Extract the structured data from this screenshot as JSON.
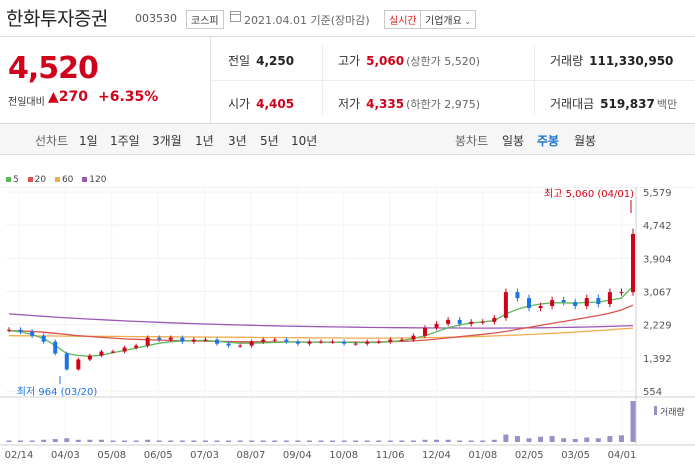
{
  "header": {
    "name": "한화투자증권",
    "code": "003530",
    "market": "코스피",
    "date": "2021.04.01 기준(장마감)",
    "live_label": "실시간",
    "info_label": "기업개요"
  },
  "quote": {
    "price": "4,520",
    "change_label": "전일대비",
    "change": "270",
    "change_pct": "+6.35%",
    "prev_close": {
      "label": "전일",
      "value": "4,250"
    },
    "high": {
      "label": "고가",
      "value": "5,060",
      "sub": "(상한가 5,520)"
    },
    "volume": {
      "label": "거래량",
      "value": "111,330,950"
    },
    "open": {
      "label": "시가",
      "value": "4,405"
    },
    "low": {
      "label": "저가",
      "value": "4,335",
      "sub": "(하한가 2,975)"
    },
    "amount": {
      "label": "거래대금",
      "value": "519,837",
      "unit": "백만"
    }
  },
  "periods": {
    "line_label": "선차트",
    "line": [
      "1일",
      "1주일",
      "3개월",
      "1년",
      "3년",
      "5년",
      "10년"
    ],
    "candle_label": "봉차트",
    "candle": [
      "일봉",
      "주봉",
      "월봉"
    ],
    "active_candle": "주봉"
  },
  "legend": [
    {
      "label": "5",
      "color": "#5cb85c"
    },
    {
      "label": "20",
      "color": "#d9534f"
    },
    {
      "label": "60",
      "color": "#f0ad4e"
    },
    {
      "label": "120",
      "color": "#9b59b6"
    }
  ],
  "colors": {
    "up": "#d0021b",
    "down": "#1a73e8",
    "volume": "#9b8fc9"
  },
  "chart_data": {
    "type": "candlestick",
    "interval": "weekly",
    "y_ticks": [
      "5,579",
      "4,742",
      "3,904",
      "3,067",
      "2,229",
      "1,392",
      "554"
    ],
    "ylim": [
      554,
      5579
    ],
    "x_ticks": [
      "02/14",
      "04/03",
      "05/08",
      "06/05",
      "07/03",
      "08/07",
      "09/04",
      "10/08",
      "11/06",
      "12/04",
      "01/08",
      "02/05",
      "03/05",
      "04/01"
    ],
    "high_note": "최고 5,060 (04/01)",
    "low_note": "최저 964 (03/20)",
    "volume_label": "거래량",
    "closes": [
      2100,
      2050,
      1950,
      1800,
      1500,
      1100,
      1350,
      1450,
      1550,
      1550,
      1650,
      1700,
      1900,
      1850,
      1900,
      1800,
      1850,
      1850,
      1750,
      1700,
      1700,
      1800,
      1850,
      1850,
      1800,
      1750,
      1800,
      1800,
      1800,
      1750,
      1750,
      1800,
      1800,
      1850,
      1850,
      1950,
      2150,
      2250,
      2350,
      2250,
      2300,
      2300,
      2400,
      3050,
      2900,
      2650,
      2700,
      2850,
      2800,
      2700,
      2900,
      2750,
      3050,
      3050,
      4520
    ],
    "ma5": [
      2080,
      2050,
      1980,
      1880,
      1700,
      1500,
      1450,
      1430,
      1460,
      1520,
      1580,
      1640,
      1700,
      1760,
      1800,
      1820,
      1830,
      1830,
      1810,
      1780,
      1760,
      1760,
      1770,
      1780,
      1790,
      1790,
      1790,
      1790,
      1790,
      1780,
      1775,
      1775,
      1780,
      1800,
      1830,
      1880,
      1950,
      2050,
      2150,
      2220,
      2270,
      2300,
      2330,
      2500,
      2620,
      2700,
      2750,
      2780,
      2780,
      2770,
      2790,
      2800,
      2850,
      2900,
      3200
    ],
    "ma20": [
      2080,
      2070,
      2060,
      2040,
      2010,
      1980,
      1950,
      1930,
      1910,
      1890,
      1870,
      1860,
      1850,
      1840,
      1830,
      1825,
      1820,
      1815,
      1810,
      1805,
      1800,
      1798,
      1796,
      1795,
      1794,
      1793,
      1792,
      1791,
      1790,
      1789,
      1788,
      1789,
      1792,
      1798,
      1806,
      1820,
      1840,
      1865,
      1895,
      1925,
      1955,
      1985,
      2015,
      2060,
      2110,
      2160,
      2210,
      2260,
      2310,
      2360,
      2410,
      2460,
      2520,
      2600,
      2720
    ],
    "ma60": [
      1950,
      1948,
      1946,
      1944,
      1942,
      1940,
      1938,
      1936,
      1934,
      1932,
      1930,
      1928,
      1926,
      1924,
      1922,
      1920,
      1918,
      1916,
      1914,
      1912,
      1910,
      1908,
      1906,
      1904,
      1902,
      1900,
      1898,
      1896,
      1894,
      1892,
      1890,
      1890,
      1890,
      1891,
      1893,
      1896,
      1900,
      1905,
      1911,
      1918,
      1926,
      1935,
      1945,
      1956,
      1968,
      1981,
      1995,
      2010,
      2026,
      2043,
      2061,
      2080,
      2100,
      2121,
      2143
    ],
    "ma120": [
      2500,
      2480,
      2460,
      2440,
      2420,
      2400,
      2385,
      2370,
      2355,
      2340,
      2325,
      2312,
      2300,
      2288,
      2276,
      2265,
      2255,
      2245,
      2236,
      2228,
      2220,
      2213,
      2206,
      2200,
      2194,
      2188,
      2183,
      2178,
      2173,
      2169,
      2165,
      2161,
      2158,
      2155,
      2152,
      2150,
      2148,
      2146,
      2145,
      2144,
      2143,
      2143,
      2143,
      2144,
      2146,
      2148,
      2151,
      2155,
      2160,
      2165,
      2171,
      2178,
      2186,
      2195,
      2205
    ],
    "volumes": [
      2,
      2,
      2,
      3,
      4,
      5,
      3,
      3,
      3,
      2,
      2,
      2,
      3,
      2,
      2,
      2,
      2,
      2,
      2,
      2,
      2,
      2,
      2,
      2,
      2,
      2,
      2,
      2,
      2,
      2,
      2,
      2,
      2,
      2,
      2,
      2,
      3,
      3,
      3,
      2,
      2,
      2,
      3,
      10,
      8,
      5,
      7,
      8,
      5,
      4,
      6,
      5,
      8,
      9,
      55
    ]
  }
}
